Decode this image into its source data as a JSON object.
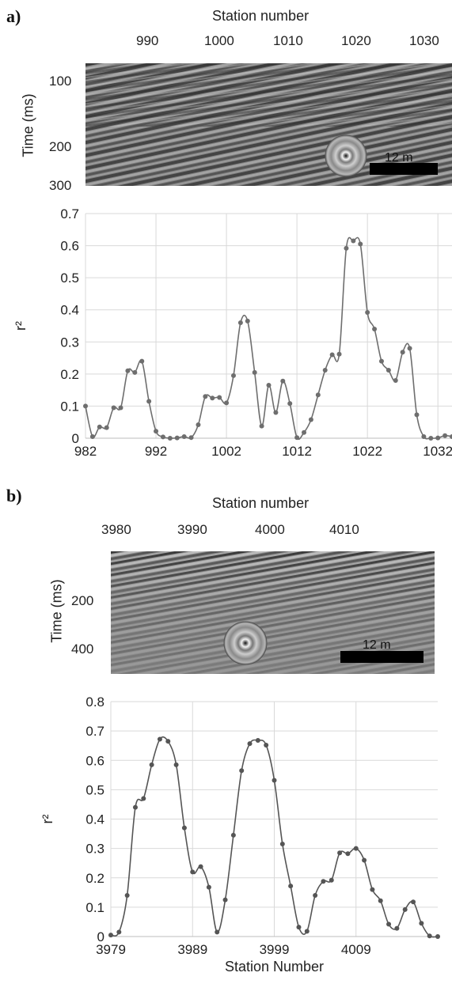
{
  "panels": {
    "a": {
      "label": "a)",
      "seismic": {
        "top_axis_label": "Station number",
        "top_ticks": [
          "990",
          "1000",
          "1010",
          "1020",
          "1030"
        ],
        "y_axis_label": "Time (ms)",
        "y_ticks": [
          "100",
          "200",
          "300"
        ],
        "scale_bar_label": "12 m"
      }
    },
    "b": {
      "label": "b)",
      "seismic": {
        "top_axis_label": "Station  number",
        "top_ticks": [
          "3980",
          "3990",
          "4000",
          "4010"
        ],
        "y_axis_label": "Time (ms)",
        "y_ticks": [
          "200",
          "400"
        ],
        "scale_bar_label": "12 m"
      }
    }
  },
  "chart_data": [
    {
      "type": "line",
      "panel": "a",
      "ylabel": "r²",
      "xlabel": "",
      "xlim": [
        982,
        1034
      ],
      "ylim": [
        0,
        0.7
      ],
      "x_ticks": [
        982,
        992,
        1002,
        1012,
        1022,
        1032
      ],
      "y_ticks": [
        0,
        0.1,
        0.2,
        0.3,
        0.4,
        0.5,
        0.6,
        0.7
      ],
      "y_tick_labels": [
        "0",
        "0.1",
        "0.2",
        "0.3",
        "0.4",
        "0.5",
        "0.6",
        "0.7"
      ],
      "grid": true,
      "series_color": "#6e6e6e",
      "x": [
        982,
        983,
        984,
        985,
        986,
        987,
        988,
        989,
        990,
        991,
        992,
        993,
        994,
        995,
        996,
        997,
        998,
        999,
        1000,
        1001,
        1002,
        1003,
        1004,
        1005,
        1006,
        1007,
        1008,
        1009,
        1010,
        1011,
        1012,
        1013,
        1014,
        1015,
        1016,
        1017,
        1018,
        1019,
        1020,
        1021,
        1022,
        1023,
        1024,
        1025,
        1026,
        1027,
        1028,
        1029,
        1030,
        1031,
        1032,
        1033,
        1034
      ],
      "values": [
        0.1,
        0.005,
        0.035,
        0.033,
        0.095,
        0.095,
        0.21,
        0.205,
        0.24,
        0.115,
        0.022,
        0.004,
        0.0,
        0.001,
        0.005,
        0.002,
        0.042,
        0.13,
        0.125,
        0.127,
        0.11,
        0.195,
        0.36,
        0.365,
        0.205,
        0.038,
        0.165,
        0.08,
        0.178,
        0.108,
        0.002,
        0.018,
        0.058,
        0.135,
        0.212,
        0.26,
        0.262,
        0.592,
        0.615,
        0.605,
        0.392,
        0.34,
        0.24,
        0.212,
        0.18,
        0.268,
        0.28,
        0.073,
        0.005,
        0.0,
        0.001,
        0.008,
        0.005
      ]
    },
    {
      "type": "line",
      "panel": "b",
      "ylabel": "r²",
      "xlabel": "Station Number",
      "xlim": [
        3979,
        4019
      ],
      "ylim": [
        0,
        0.8
      ],
      "x_ticks": [
        3979,
        3989,
        3999,
        4009
      ],
      "y_ticks": [
        0,
        0.1,
        0.2,
        0.3,
        0.4,
        0.5,
        0.6,
        0.7,
        0.8
      ],
      "y_tick_labels": [
        "0",
        "0.1",
        "0.2",
        "0.3",
        "0.4",
        "0.5",
        "0.6",
        "0.7",
        "0.8"
      ],
      "grid": true,
      "series_color": "#555555",
      "x": [
        3979,
        3980,
        3981,
        3982,
        3983,
        3984,
        3985,
        3986,
        3987,
        3988,
        3989,
        3990,
        3991,
        3992,
        3993,
        3994,
        3995,
        3996,
        3997,
        3998,
        3999,
        4000,
        4001,
        4002,
        4003,
        4004,
        4005,
        4006,
        4007,
        4008,
        4009,
        4010,
        4011,
        4012,
        4013,
        4014,
        4015,
        4016,
        4017,
        4018,
        4019
      ],
      "values": [
        0.005,
        0.015,
        0.14,
        0.44,
        0.47,
        0.585,
        0.672,
        0.665,
        0.585,
        0.37,
        0.22,
        0.238,
        0.168,
        0.015,
        0.125,
        0.345,
        0.565,
        0.657,
        0.668,
        0.652,
        0.532,
        0.315,
        0.172,
        0.032,
        0.018,
        0.14,
        0.188,
        0.192,
        0.285,
        0.282,
        0.3,
        0.26,
        0.16,
        0.122,
        0.042,
        0.028,
        0.092,
        0.118,
        0.045,
        0.002,
        0.0
      ]
    }
  ]
}
